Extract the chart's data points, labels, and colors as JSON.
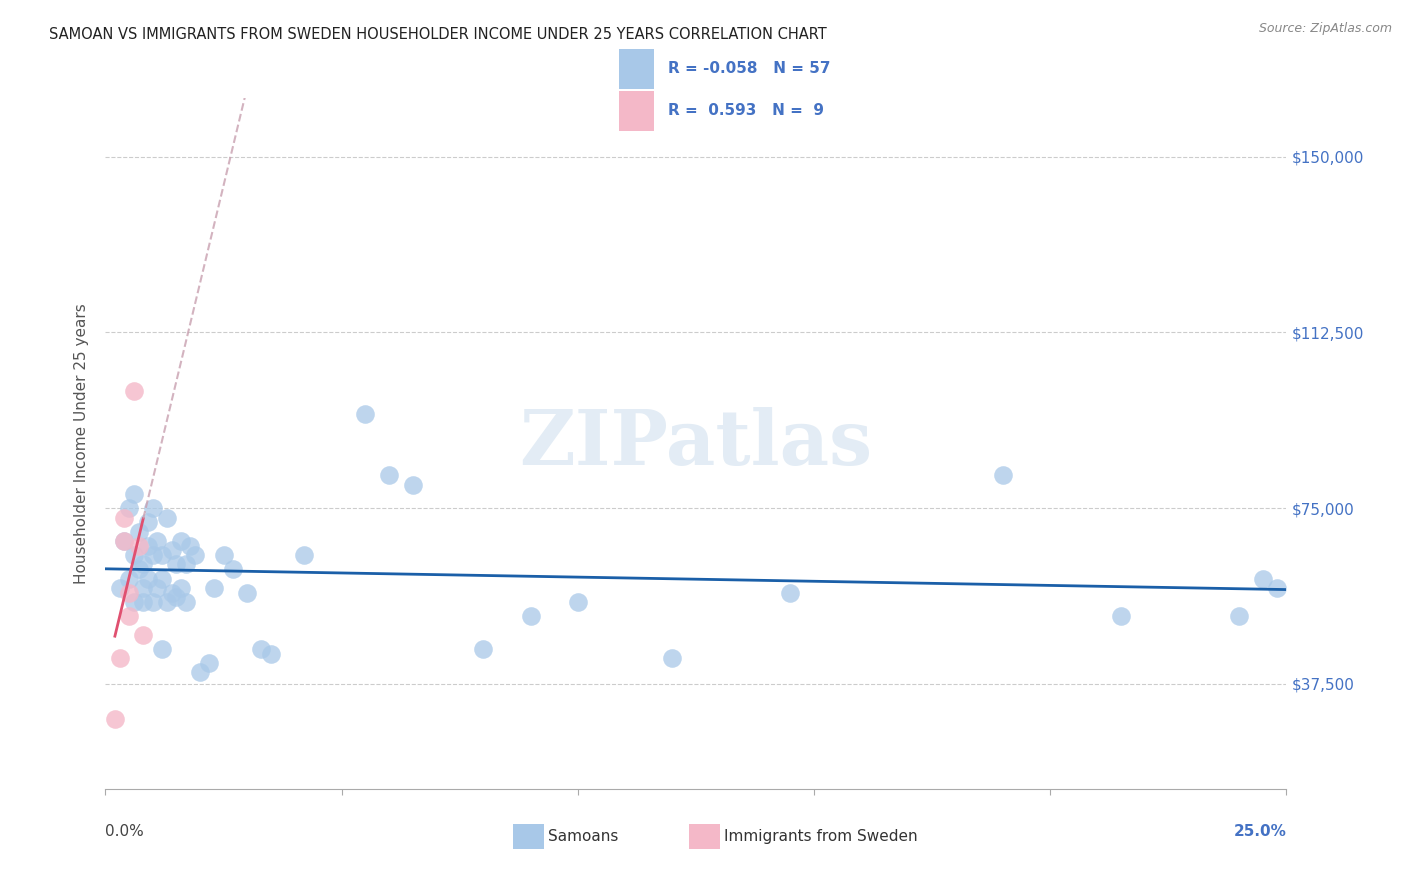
{
  "title": "SAMOAN VS IMMIGRANTS FROM SWEDEN HOUSEHOLDER INCOME UNDER 25 YEARS CORRELATION CHART",
  "source": "Source: ZipAtlas.com",
  "ylabel": "Householder Income Under 25 years",
  "ytick_labels": [
    "$150,000",
    "$112,500",
    "$75,000",
    "$37,500"
  ],
  "ytick_values": [
    150000,
    112500,
    75000,
    37500
  ],
  "xmin": 0.0,
  "xmax": 0.25,
  "ymin": 15000,
  "ymax": 162500,
  "watermark": "ZIPatlas",
  "blue_color": "#a8c8e8",
  "pink_color": "#f4b8c8",
  "trend_blue_color": "#1a5fa8",
  "trend_pink_solid_color": "#e05070",
  "trend_pink_dashed_color": "#c8a0b0",
  "samoans_x": [
    0.003,
    0.004,
    0.005,
    0.005,
    0.006,
    0.006,
    0.006,
    0.007,
    0.007,
    0.008,
    0.008,
    0.008,
    0.009,
    0.009,
    0.009,
    0.01,
    0.01,
    0.01,
    0.011,
    0.011,
    0.012,
    0.012,
    0.012,
    0.013,
    0.013,
    0.014,
    0.014,
    0.015,
    0.015,
    0.016,
    0.016,
    0.017,
    0.017,
    0.018,
    0.019,
    0.02,
    0.022,
    0.023,
    0.025,
    0.027,
    0.03,
    0.033,
    0.035,
    0.042,
    0.055,
    0.06,
    0.065,
    0.08,
    0.09,
    0.1,
    0.12,
    0.145,
    0.19,
    0.215,
    0.24,
    0.245,
    0.248
  ],
  "samoans_y": [
    58000,
    68000,
    75000,
    60000,
    78000,
    65000,
    55000,
    70000,
    62000,
    63000,
    58000,
    55000,
    67000,
    72000,
    60000,
    55000,
    65000,
    75000,
    58000,
    68000,
    45000,
    60000,
    65000,
    55000,
    73000,
    57000,
    66000,
    56000,
    63000,
    58000,
    68000,
    55000,
    63000,
    67000,
    65000,
    40000,
    42000,
    58000,
    65000,
    62000,
    57000,
    45000,
    44000,
    65000,
    95000,
    82000,
    80000,
    45000,
    52000,
    55000,
    43000,
    57000,
    82000,
    52000,
    52000,
    60000,
    58000
  ],
  "sweden_x": [
    0.002,
    0.003,
    0.004,
    0.004,
    0.005,
    0.005,
    0.006,
    0.007,
    0.008
  ],
  "sweden_y": [
    30000,
    43000,
    68000,
    73000,
    57000,
    52000,
    100000,
    67000,
    48000
  ],
  "background_color": "#ffffff",
  "grid_color": "#cccccc",
  "title_color": "#333333",
  "right_tick_color": "#4472c4"
}
